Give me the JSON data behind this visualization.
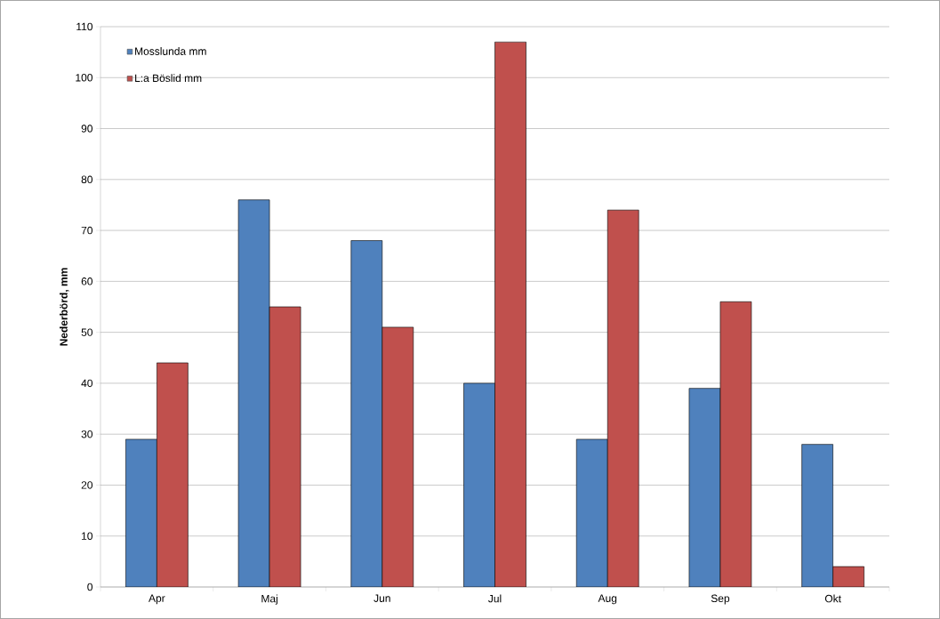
{
  "chart_data": {
    "type": "bar",
    "ylabel": "Nederbörd, mm",
    "categories": [
      "Apr",
      "Maj",
      "Jun",
      "Jul",
      "Aug",
      "Sep",
      "Okt"
    ],
    "series": [
      {
        "name": "Mosslunda mm",
        "color": "#4f81bd",
        "values": [
          29,
          76,
          68,
          40,
          29,
          39,
          28
        ]
      },
      {
        "name": "L:a Böslid mm",
        "color": "#c0504d",
        "values": [
          44,
          55,
          51,
          107,
          74,
          56,
          4
        ]
      }
    ],
    "ylim": [
      0,
      110
    ],
    "yticks": [
      0,
      10,
      20,
      30,
      40,
      50,
      60,
      70,
      80,
      90,
      100,
      110
    ],
    "grid": "y",
    "legend": "top left"
  }
}
